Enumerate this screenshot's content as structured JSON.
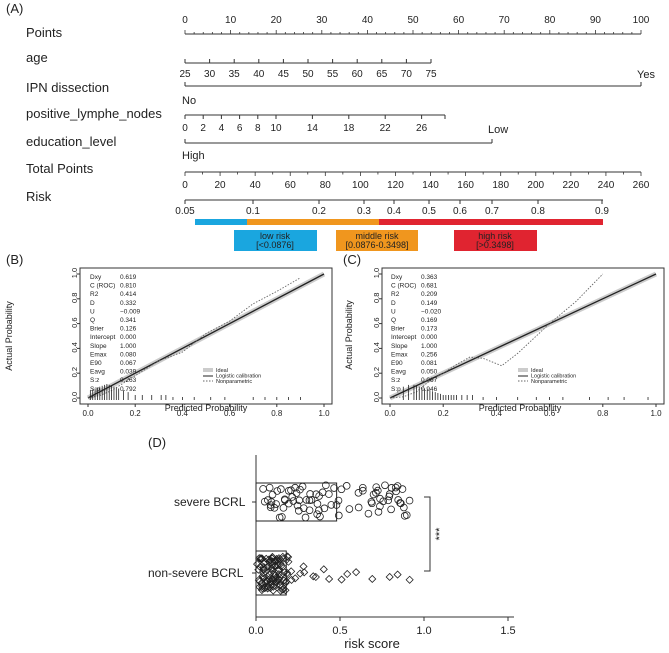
{
  "colors": {
    "low_risk": "#1aa6df",
    "middle_risk": "#f0961e",
    "high_risk": "#e02430",
    "axis": "#333333",
    "ideal_line": "#cccccc",
    "logistic_line": "#222222",
    "nonparam_line": "#666666"
  },
  "chart_data": [
    {
      "panel": "(A)",
      "type": "nomogram",
      "rows": [
        {
          "label": "Points",
          "ticks": [
            "0",
            "10",
            "20",
            "30",
            "40",
            "50",
            "60",
            "70",
            "80",
            "90",
            "100"
          ]
        },
        {
          "label": "age",
          "ticks": [
            "25",
            "30",
            "35",
            "40",
            "45",
            "50",
            "55",
            "60",
            "65",
            "70",
            "75"
          ]
        },
        {
          "label": "IPN dissection",
          "ticks": [
            "No",
            "Yes"
          ]
        },
        {
          "label": "positive_lymphe_nodes",
          "ticks": [
            "0",
            "2",
            "4",
            "6",
            "8",
            "10",
            "14",
            "18",
            "22",
            "26"
          ]
        },
        {
          "label": "education_level",
          "ticks": [
            "High",
            "Low"
          ]
        },
        {
          "label": "Total Points",
          "ticks": [
            "0",
            "20",
            "40",
            "60",
            "80",
            "100",
            "120",
            "140",
            "160",
            "180",
            "200",
            "220",
            "240",
            "260"
          ]
        },
        {
          "label": "Risk",
          "ticks": [
            "0.05",
            "0.1",
            "0.2",
            "0.3",
            "0.4",
            "0.5",
            "0.6",
            "0.7",
            "0.8",
            "0.9"
          ]
        }
      ],
      "risk_groups": [
        {
          "name": "low risk",
          "range": "[<0.0876]"
        },
        {
          "name": "middle risk",
          "range": "[0.0876-0.3498]"
        },
        {
          "name": "high risk",
          "range": "[>0.3498]"
        }
      ]
    },
    {
      "panel": "(B)",
      "type": "line",
      "title": "",
      "xlabel": "Predicted Probability",
      "ylabel": "Actual Probability",
      "xlim": [
        0,
        1
      ],
      "ylim": [
        0,
        1
      ],
      "xticks": [
        "0.0",
        "0.2",
        "0.4",
        "0.6",
        "0.8",
        "1.0"
      ],
      "yticks": [
        "0.0",
        "0.2",
        "0.4",
        "0.6",
        "0.8",
        "1.0"
      ],
      "stats_labels": [
        "Dxy",
        "C (ROC)",
        "R2",
        "D",
        "U",
        "Q",
        "Brier",
        "Intercept",
        "Slope",
        "Emax",
        "E90",
        "Eavg",
        "S:z",
        "S:p"
      ],
      "stats_values": [
        "0.619",
        "0.810",
        "0.414",
        "0.332",
        "−0.009",
        "0.341",
        "0.126",
        "0.000",
        "1.000",
        "0.080",
        "0.067",
        "0.039",
        "0.263",
        "0.792"
      ],
      "legend": [
        "Ideal",
        "Logistic calibration",
        "Nonparametric"
      ],
      "series": [
        {
          "name": "Ideal",
          "x": [
            0,
            1
          ],
          "y": [
            0,
            1
          ]
        },
        {
          "name": "Logistic calibration",
          "x": [
            0,
            1
          ],
          "y": [
            0,
            1
          ]
        },
        {
          "name": "Nonparametric",
          "x": [
            0.0,
            0.05,
            0.1,
            0.2,
            0.3,
            0.4,
            0.5,
            0.6,
            0.7,
            0.8,
            0.9
          ],
          "y": [
            0.0,
            0.02,
            0.06,
            0.18,
            0.3,
            0.37,
            0.52,
            0.62,
            0.76,
            0.86,
            0.97
          ]
        }
      ],
      "rug": [
        0.01,
        0.02,
        0.03,
        0.04,
        0.05,
        0.06,
        0.07,
        0.08,
        0.09,
        0.1,
        0.11,
        0.12,
        0.13,
        0.15,
        0.17,
        0.2,
        0.23,
        0.27,
        0.31,
        0.33,
        0.36,
        0.4,
        0.45,
        0.52,
        0.58,
        0.7,
        0.75,
        0.8,
        0.85,
        0.9
      ]
    },
    {
      "panel": "(C)",
      "type": "line",
      "title": "",
      "xlabel": "Predicted Probability",
      "ylabel": "Actual Probability",
      "xlim": [
        0,
        1
      ],
      "ylim": [
        0,
        1
      ],
      "xticks": [
        "0.0",
        "0.2",
        "0.4",
        "0.6",
        "0.8",
        "1.0"
      ],
      "yticks": [
        "0.0",
        "0.2",
        "0.4",
        "0.6",
        "0.8",
        "1.0"
      ],
      "stats_labels": [
        "Dxy",
        "C (ROC)",
        "R2",
        "D",
        "U",
        "Q",
        "Brier",
        "Intercept",
        "Slope",
        "Emax",
        "E90",
        "Eavg",
        "S:z",
        "S:p"
      ],
      "stats_values": [
        "0.363",
        "0.681",
        "0.209",
        "0.149",
        "−0.020",
        "0.169",
        "0.173",
        "0.000",
        "1.000",
        "0.256",
        "0.081",
        "0.050",
        "0.067",
        "0.946"
      ],
      "legend": [
        "Ideal",
        "Logistic calibration",
        "Nonparametric"
      ],
      "series": [
        {
          "name": "Ideal",
          "x": [
            0,
            1
          ],
          "y": [
            0,
            1
          ]
        },
        {
          "name": "Logistic calibration",
          "x": [
            0,
            1
          ],
          "y": [
            0,
            1
          ]
        },
        {
          "name": "Nonparametric",
          "x": [
            0.0,
            0.05,
            0.1,
            0.15,
            0.2,
            0.25,
            0.3,
            0.35,
            0.42,
            0.48,
            0.55,
            0.6,
            0.7,
            0.8
          ],
          "y": [
            0.0,
            0.01,
            0.05,
            0.14,
            0.2,
            0.27,
            0.33,
            0.32,
            0.26,
            0.36,
            0.5,
            0.6,
            0.78,
            1.0
          ]
        }
      ],
      "rug": [
        0.05,
        0.07,
        0.09,
        0.1,
        0.11,
        0.12,
        0.13,
        0.14,
        0.15,
        0.16,
        0.17,
        0.18,
        0.19,
        0.2,
        0.21,
        0.22,
        0.23,
        0.24,
        0.25,
        0.27,
        0.29,
        0.31,
        0.35,
        0.4,
        0.48,
        0.55,
        0.6,
        0.65,
        0.75,
        0.82,
        0.88,
        0.97
      ]
    },
    {
      "panel": "(D)",
      "type": "scatter",
      "title": "",
      "xlabel": "risk score",
      "ylabel": "",
      "xlim": [
        0,
        1.5
      ],
      "xticks": [
        "0.0",
        "0.5",
        "1.0",
        "1.5"
      ],
      "categories": [
        "severe BCRL",
        "non-severe BCRL"
      ],
      "significance": "***",
      "series": [
        {
          "name": "severe BCRL",
          "box": [
            0.0,
            0.48
          ],
          "values": [
            0.05,
            0.07,
            0.09,
            0.1,
            0.12,
            0.14,
            0.15,
            0.17,
            0.18,
            0.2,
            0.22,
            0.23,
            0.25,
            0.27,
            0.28,
            0.3,
            0.32,
            0.33,
            0.35,
            0.37,
            0.38,
            0.4,
            0.42,
            0.45,
            0.48,
            0.5,
            0.55,
            0.6,
            0.65,
            0.68,
            0.7,
            0.72,
            0.74,
            0.75,
            0.76,
            0.78,
            0.8,
            0.82,
            0.84,
            0.85,
            0.86,
            0.88,
            0.9
          ]
        },
        {
          "name": "non-severe BCRL",
          "box": [
            0.0,
            0.18
          ],
          "values": [
            0.02,
            0.03,
            0.04,
            0.05,
            0.06,
            0.07,
            0.08,
            0.09,
            0.1,
            0.11,
            0.12,
            0.13,
            0.14,
            0.15,
            0.16,
            0.17,
            0.18,
            0.2,
            0.22,
            0.24,
            0.26,
            0.28,
            0.3,
            0.33,
            0.36,
            0.4,
            0.45,
            0.5,
            0.55,
            0.6,
            0.7,
            0.8,
            0.85,
            0.9
          ]
        }
      ]
    }
  ]
}
